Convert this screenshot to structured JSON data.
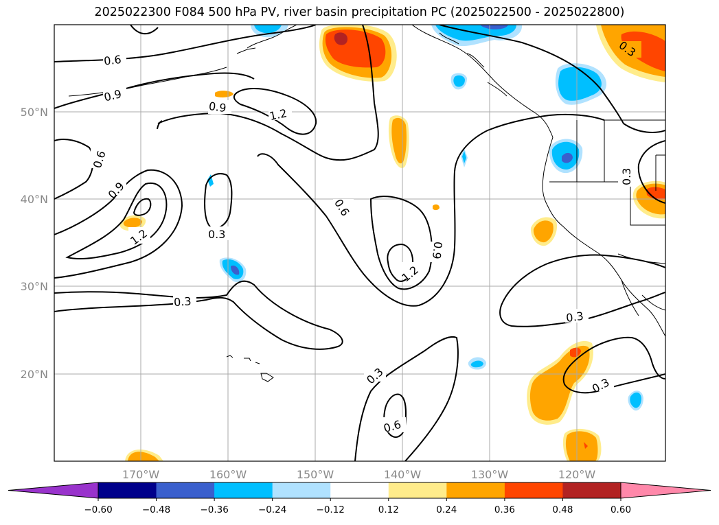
{
  "title": "2025022300 F084 500 hPa PV, river basin precipitation PC (2025022500 - 2025022800)",
  "latitude_labels": [
    "50°N",
    "40°N",
    "30°N",
    "20°N"
  ],
  "longitude_labels": [
    "170°W",
    "160°W",
    "150°W",
    "140°W",
    "130°W",
    "120°W"
  ],
  "contour_labels": [
    "0.6",
    "0.9",
    "0.9",
    "1.2",
    "0.6",
    "0.9",
    "1.2",
    "0.3",
    "0.3",
    "0.6",
    "1.2",
    "0.9",
    "0.3",
    "0.3",
    "0.6",
    "0.3",
    "0.3",
    "0.3"
  ],
  "colorbar": {
    "ticks": [
      "−0.60",
      "−0.48",
      "−0.36",
      "−0.24",
      "−0.12",
      "0.12",
      "0.24",
      "0.36",
      "0.48",
      "0.60"
    ],
    "colors": [
      "#9933cc",
      "#00008b",
      "#3a5fcd",
      "#00bfff",
      "#b0e2ff",
      "#ffffff",
      "#ffec8b",
      "#ffa500",
      "#ff4500",
      "#b22222",
      "#ff88aa"
    ]
  },
  "legend_colors": {
    "pos_light": "#ffec8b",
    "pos_orange": "#ffa500",
    "pos_red": "#ff4500",
    "pos_darkred": "#b22222",
    "neg_light": "#b0e2ff",
    "neg_sky": "#00bfff",
    "neg_blue": "#3a5fcd"
  }
}
